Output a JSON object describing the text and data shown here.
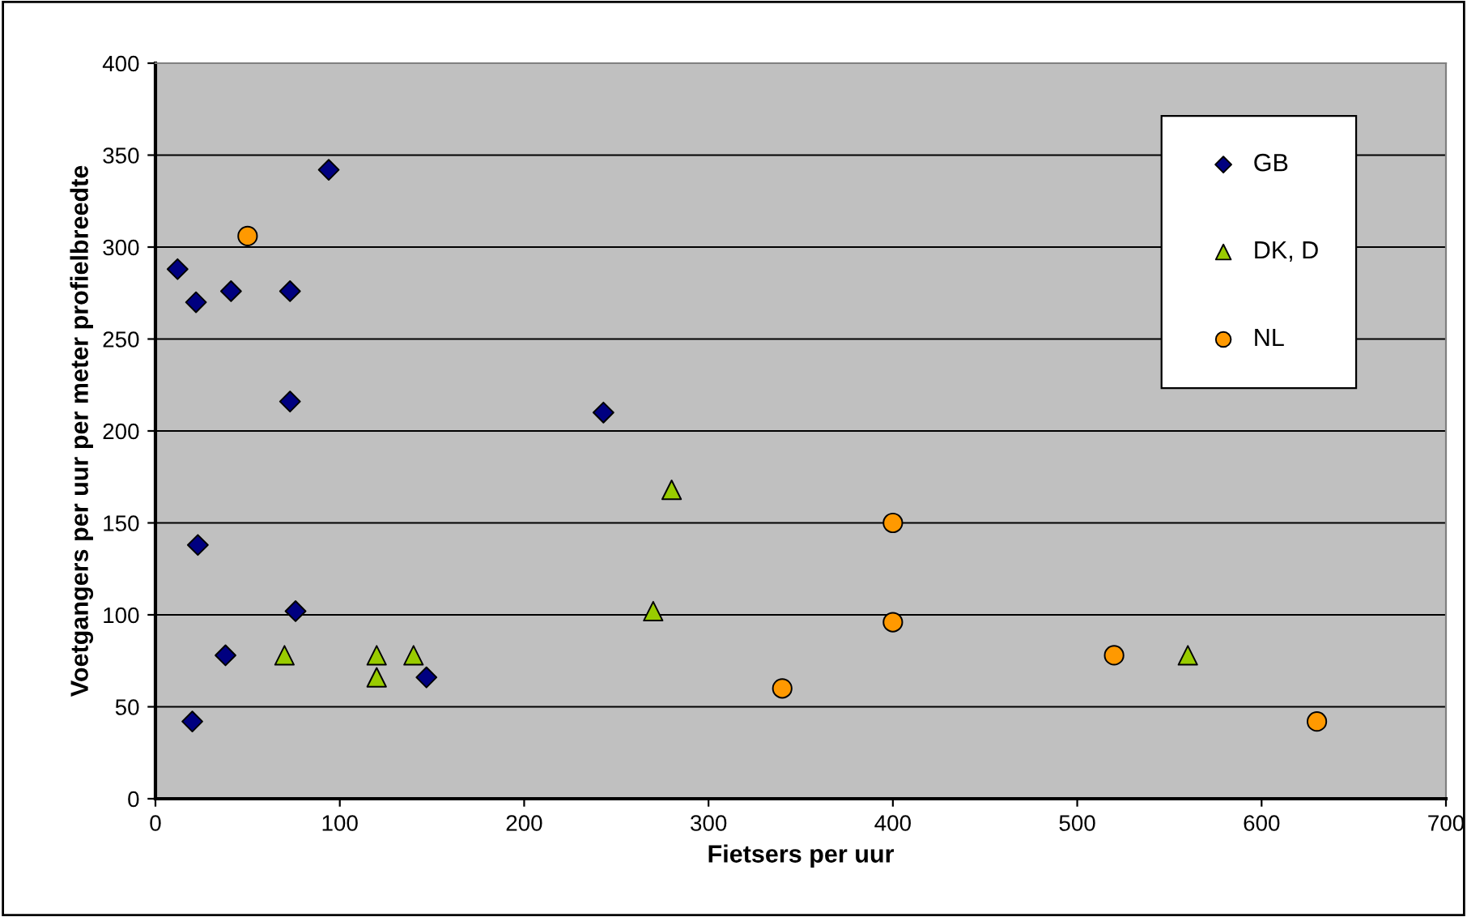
{
  "chart_data": {
    "type": "scatter",
    "xlabel": "Fietsers per uur",
    "ylabel": "Voetgangers per uur per meter profielbreedte",
    "xlim": [
      0,
      700
    ],
    "xticks": [
      0,
      100,
      200,
      300,
      400,
      500,
      600,
      700
    ],
    "ylim": [
      0,
      400
    ],
    "yticks": [
      0,
      50,
      100,
      150,
      200,
      250,
      300,
      350,
      400
    ],
    "grid": "y",
    "legend": "top right",
    "series": [
      {
        "name": "GB",
        "color": "#000080",
        "marker": "diamond",
        "x": [
          94,
          12,
          22,
          41,
          73,
          73,
          23,
          76,
          38,
          147,
          20,
          243
        ],
        "values": [
          342,
          288,
          270,
          276,
          276,
          216,
          138,
          102,
          78,
          66,
          42,
          210
        ]
      },
      {
        "name": "DK, D",
        "color": "#99cc00",
        "marker": "triangle",
        "x": [
          70,
          120,
          120,
          140,
          280,
          270,
          560
        ],
        "values": [
          78,
          78,
          66,
          78,
          168,
          102,
          78
        ]
      },
      {
        "name": "NL",
        "color": "#ff9900",
        "marker": "circle",
        "x": [
          50,
          400,
          400,
          340,
          520,
          630
        ],
        "values": [
          306,
          150,
          96,
          60,
          78,
          42
        ]
      }
    ]
  }
}
